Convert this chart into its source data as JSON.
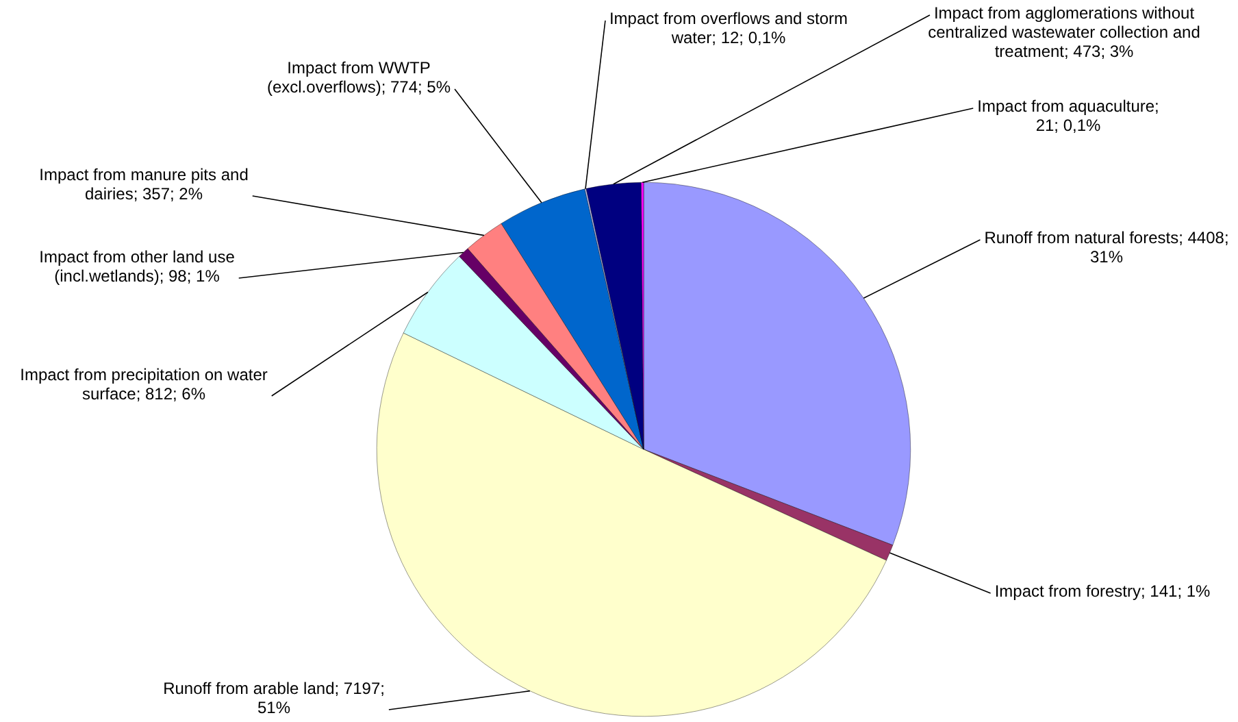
{
  "chart_data": {
    "type": "pie",
    "categories": [
      "Runoff from natural forests",
      "Impact from forestry",
      "Runoff from arable land",
      "Impact from precipitation on water surface",
      "Impact from other land use (incl.wetlands)",
      "Impact from manure pits and dairies",
      "Impact from WWTP (excl.overflows)",
      "Impact from overflows and storm water",
      "Impact from agglomerations without centralized wastewater collection and treatment",
      "Impact from aquaculture"
    ],
    "values": [
      4408,
      141,
      7197,
      812,
      98,
      357,
      774,
      12,
      473,
      21
    ],
    "colors": [
      "#9999ff",
      "#993366",
      "#ffffcc",
      "#ccffff",
      "#660066",
      "#ff8080",
      "#0066cc",
      "#ccccff",
      "#000080",
      "#ff00ff"
    ],
    "value_labels": [
      "; 4408; 31%",
      "; 141; 1%",
      "; 7197; 51%",
      "; 812; 6%",
      "; 98; 1%",
      "; 357; 2%",
      "; 774; 5%",
      "; 12; 0,1%",
      "; 473; 3%",
      "; 21; 0,1%"
    ],
    "legend": false
  }
}
